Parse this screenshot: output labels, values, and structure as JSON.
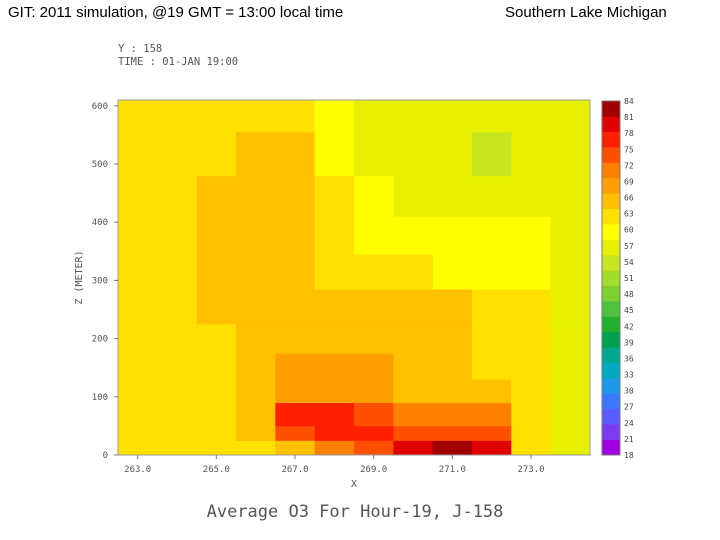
{
  "header": {
    "left": "GIT: 2011 simulation, @19 GMT = 13:00 local time",
    "right": "Southern Lake Michigan"
  },
  "meta": {
    "y_line": "Y : 158",
    "time_line": "TIME : 01-JAN 19:00"
  },
  "chart_data": {
    "type": "heatmap",
    "title": "Average O3 For Hour-19, J-158",
    "xlabel": "X",
    "ylabel": "Z (METER)",
    "xlim": [
      262.5,
      274.5
    ],
    "ylim": [
      0,
      610
    ],
    "x_ticks": [
      263.0,
      265.0,
      267.0,
      269.0,
      271.0,
      273.0
    ],
    "x_tick_labels": [
      "263.0",
      "265.0",
      "267.0",
      "269.0",
      "271.0",
      "273.0"
    ],
    "y_ticks": [
      0,
      100,
      200,
      300,
      400,
      500,
      600
    ],
    "y_tick_labels": [
      "0",
      "100",
      "200",
      "300",
      "400",
      "500",
      "600"
    ],
    "x_centers": [
      263,
      264,
      265,
      266,
      267,
      268,
      269,
      270,
      271,
      272,
      273,
      274
    ],
    "z_levels": [
      {
        "bottom": 0,
        "top": 25
      },
      {
        "bottom": 25,
        "top": 50
      },
      {
        "bottom": 50,
        "top": 90
      },
      {
        "bottom": 90,
        "top": 130
      },
      {
        "bottom": 130,
        "top": 175
      },
      {
        "bottom": 175,
        "top": 225
      },
      {
        "bottom": 225,
        "top": 285
      },
      {
        "bottom": 285,
        "top": 345
      },
      {
        "bottom": 345,
        "top": 410
      },
      {
        "bottom": 410,
        "top": 480
      },
      {
        "bottom": 480,
        "top": 555
      },
      {
        "bottom": 555,
        "top": 610
      }
    ],
    "values": [
      [
        63,
        63,
        65,
        65,
        68,
        72,
        76,
        82,
        84,
        83,
        63,
        58
      ],
      [
        63,
        63,
        65,
        67,
        76,
        78,
        78,
        76,
        76,
        76,
        63,
        58
      ],
      [
        63,
        63,
        65,
        68,
        78,
        78,
        76,
        74,
        72,
        72,
        63,
        58
      ],
      [
        63,
        64,
        65,
        66,
        70,
        70,
        70,
        68,
        68,
        66,
        63,
        59
      ],
      [
        63,
        63,
        65,
        67,
        70,
        70,
        70,
        68,
        67,
        65,
        63,
        59
      ],
      [
        63,
        63,
        65,
        67,
        68,
        68,
        67,
        66,
        66,
        64,
        63,
        59
      ],
      [
        63,
        64,
        66,
        68,
        68,
        68,
        66,
        66,
        66,
        65,
        63,
        59
      ],
      [
        63,
        64,
        66,
        68,
        67,
        65,
        64,
        64,
        62,
        62,
        62,
        59
      ],
      [
        63,
        64,
        66,
        68,
        66,
        64,
        62,
        61,
        61,
        60,
        61,
        59
      ],
      [
        63,
        63,
        66,
        67,
        66,
        65,
        61,
        59,
        58,
        58,
        59,
        58
      ],
      [
        63,
        63,
        65,
        67,
        66,
        62,
        59,
        57,
        57,
        56,
        58,
        58
      ],
      [
        63,
        63,
        65,
        65,
        64,
        62,
        58,
        57,
        57,
        57,
        58,
        57
      ]
    ],
    "colorbar": {
      "labels": [
        "18",
        "21",
        "24",
        "27",
        "30",
        "33",
        "36",
        "39",
        "42",
        "45",
        "48",
        "51",
        "54",
        "57",
        "60",
        "63",
        "66",
        "69",
        "72",
        "75",
        "78",
        "81",
        "84"
      ],
      "colors": [
        "#a000e0",
        "#7b3cf0",
        "#5a5cff",
        "#3c78ff",
        "#1e98e8",
        "#00a8c0",
        "#00a890",
        "#00a050",
        "#22b030",
        "#50c040",
        "#7ed030",
        "#a0dc28",
        "#c8e620",
        "#e6f000",
        "#ffff00",
        "#ffe000",
        "#ffc000",
        "#ffa000",
        "#ff8000",
        "#ff5000",
        "#ff2000",
        "#e00000",
        "#a00000"
      ]
    }
  }
}
